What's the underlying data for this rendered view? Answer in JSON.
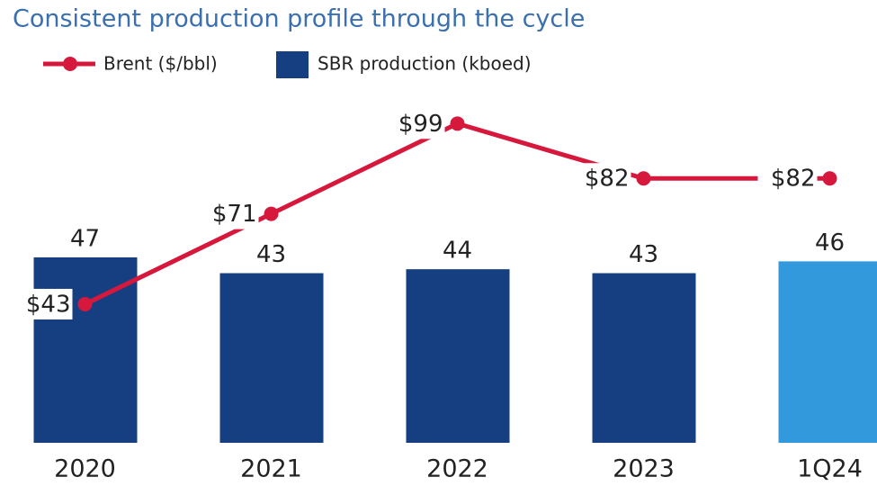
{
  "chart_data": {
    "type": "bar_line",
    "title": "Consistent production profile through the cycle",
    "categories": [
      "2020",
      "2021",
      "2022",
      "2023",
      "1Q24"
    ],
    "series": [
      {
        "name": "Brent ($/bbl)",
        "type": "line",
        "axis": "y2",
        "color": "#d7183d",
        "values": [
          43,
          71,
          99,
          82,
          82
        ],
        "value_labels": [
          "$43",
          "$71",
          "$99",
          "$82",
          "$82"
        ]
      },
      {
        "name": "SBR production (kboed)",
        "type": "bar",
        "color": "#163f82",
        "colors": [
          "#163f82",
          "#163f82",
          "#163f82",
          "#163f82",
          "#3399dd"
        ],
        "values": [
          47,
          43,
          44,
          43,
          46
        ]
      }
    ],
    "ylim": [
      0,
      94
    ],
    "y2lim": [
      0,
      115
    ]
  }
}
